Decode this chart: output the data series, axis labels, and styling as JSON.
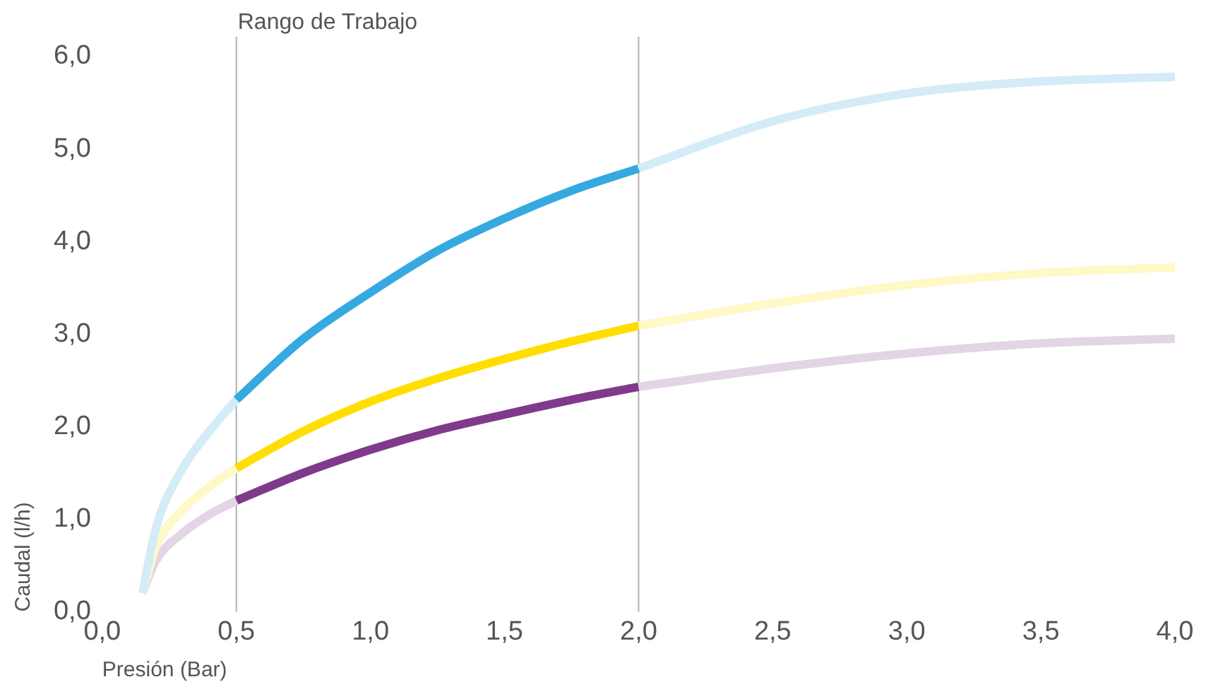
{
  "chart_data": {
    "type": "line",
    "xlabel": "Presión (Bar)",
    "ylabel": "Caudal (l/h)",
    "xlim": [
      0,
      4
    ],
    "xticks": [
      {
        "value": 0,
        "label": "0,0"
      },
      {
        "value": 0.5,
        "label": "0,5"
      },
      {
        "value": 1,
        "label": "1,0"
      },
      {
        "value": 1.5,
        "label": "1,5"
      },
      {
        "value": 2,
        "label": "2,0"
      },
      {
        "value": 2.5,
        "label": "2,5"
      },
      {
        "value": 3,
        "label": "3,0"
      },
      {
        "value": 3.5,
        "label": "3,5"
      },
      {
        "value": 4,
        "label": "4,0"
      }
    ],
    "ylim": [
      0,
      6
    ],
    "yticks": [
      {
        "value": 0,
        "label": "0,0"
      },
      {
        "value": 1,
        "label": "1,0"
      },
      {
        "value": 2,
        "label": "2,0"
      },
      {
        "value": 3,
        "label": "3,0"
      },
      {
        "value": 4,
        "label": "4,0"
      },
      {
        "value": 5,
        "label": "5,0"
      },
      {
        "value": 6,
        "label": "6,0"
      }
    ],
    "series": [
      {
        "color": "#d3ecf8",
        "x": [
          0.15,
          0.2,
          0.3,
          0.4,
          0.5
        ],
        "values": [
          0.2,
          0.9,
          1.55,
          1.95,
          2.29
        ]
      },
      {
        "color": "#d3ecf8",
        "x": [
          2.0,
          2.5,
          3.0,
          3.5,
          4.0
        ],
        "values": [
          4.79,
          5.3,
          5.6,
          5.73,
          5.78
        ]
      },
      {
        "color": "#fff8c7",
        "x": [
          0.15,
          0.2,
          0.3,
          0.4,
          0.5
        ],
        "values": [
          0.2,
          0.7,
          1.1,
          1.35,
          1.55
        ]
      },
      {
        "color": "#fff8c7",
        "x": [
          2.0,
          2.5,
          3.0,
          3.5,
          4.0
        ],
        "values": [
          3.09,
          3.33,
          3.53,
          3.66,
          3.72
        ]
      },
      {
        "color": "#e3d4e6",
        "x": [
          0.15,
          0.2,
          0.3,
          0.4,
          0.5
        ],
        "values": [
          0.2,
          0.55,
          0.85,
          1.05,
          1.2
        ]
      },
      {
        "color": "#e3d4e6",
        "x": [
          2.0,
          2.5,
          3.0,
          3.5,
          4.0
        ],
        "values": [
          2.43,
          2.63,
          2.79,
          2.9,
          2.95
        ]
      },
      {
        "color": "#36a9e1",
        "x": [
          0.5,
          0.75,
          1.0,
          1.25,
          1.5,
          1.75,
          2.0
        ],
        "values": [
          2.29,
          2.95,
          3.45,
          3.9,
          4.25,
          4.55,
          4.79
        ]
      },
      {
        "color": "#ffde00",
        "x": [
          0.5,
          0.75,
          1.0,
          1.25,
          1.5,
          1.75,
          2.0
        ],
        "values": [
          1.55,
          1.95,
          2.27,
          2.52,
          2.73,
          2.92,
          3.09
        ]
      },
      {
        "color": "#7f3a8c",
        "x": [
          0.5,
          0.75,
          1.0,
          1.25,
          1.5,
          1.75,
          2.0
        ],
        "values": [
          1.2,
          1.5,
          1.75,
          1.96,
          2.13,
          2.29,
          2.43
        ]
      }
    ],
    "ref_lines": [
      {
        "axis": "x",
        "value": 0.5,
        "label": "Rango de Trabajo",
        "color": "#b0b0b0"
      },
      {
        "axis": "x",
        "value": 2.0,
        "label": null,
        "color": "#b0b0b0"
      }
    ],
    "grid": false,
    "legend": false,
    "marker": "none",
    "line_style": "solid"
  }
}
